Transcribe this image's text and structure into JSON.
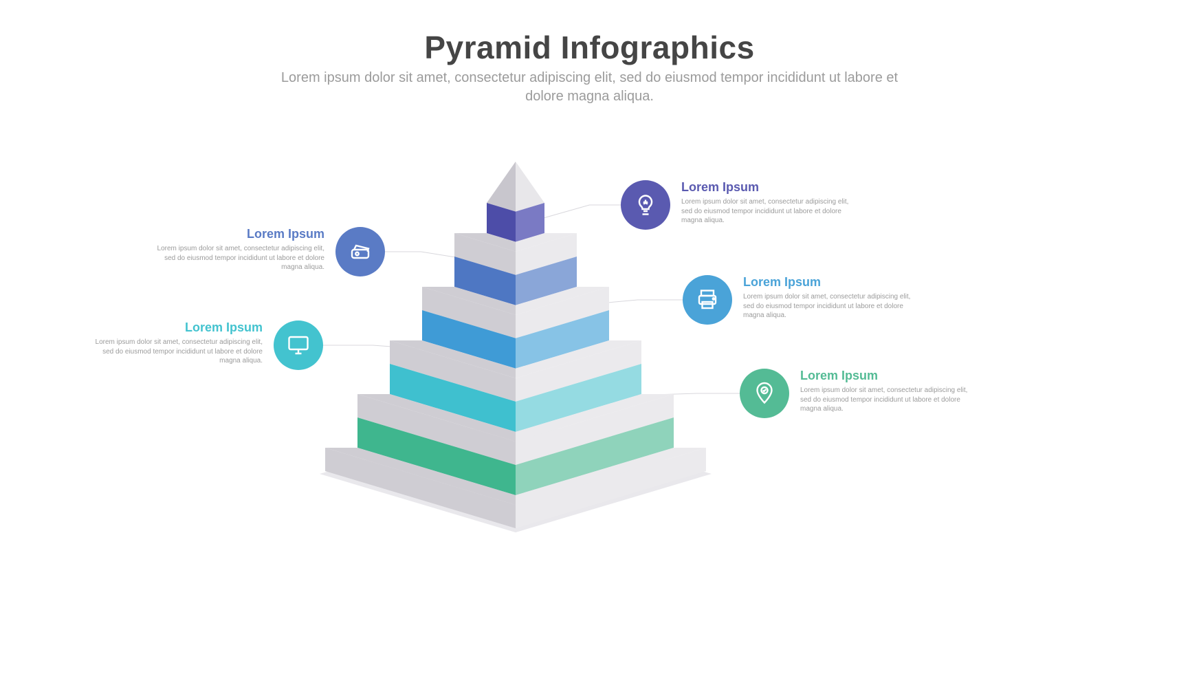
{
  "header": {
    "title": "Pyramid Infographics",
    "subtitle": "Lorem ipsum dolor sit amet, consectetur adipiscing elit, sed do eiusmod tempor incididunt ut labore et dolore magna aliqua.",
    "title_color": "#454545",
    "subtitle_color": "#9b9b9b",
    "title_fontsize": 46,
    "subtitle_fontsize": 20
  },
  "background_color": "#ffffff",
  "pyramid": {
    "type": "infographic",
    "apex": {
      "left_face": "#c8c6cd",
      "right_face": "#e8e7ea"
    },
    "spacer_color_left": "#cfcdd3",
    "spacer_color_right": "#ebeaed",
    "spacer_height": 34,
    "band_height": 44,
    "levels": [
      {
        "left_face": "#4d4da8",
        "right_face": "#7a7ac4"
      },
      {
        "left_face": "#4e77c3",
        "right_face": "#8aa6d8"
      },
      {
        "left_face": "#3f9bd6",
        "right_face": "#87c3e6"
      },
      {
        "left_face": "#3fc0cf",
        "right_face": "#95dbe2"
      },
      {
        "left_face": "#3fb68e",
        "right_face": "#8fd3bb"
      }
    ],
    "shadow_color": "#e9e8ec"
  },
  "callouts": [
    {
      "id": "c-bulb",
      "side": "right",
      "icon": "bulb-icon",
      "circle_color": "#5a5ab0",
      "title_color": "#5a5ab0",
      "title": "Lorem Ipsum",
      "desc": "Lorem ipsum dolor sit amet, consectetur adipiscing elit, sed do eiusmod tempor incididunt ut labore et dolore magna aliqua."
    },
    {
      "id": "c-tickets",
      "side": "left",
      "icon": "tickets-icon",
      "circle_color": "#5a7bc5",
      "title_color": "#5a7bc5",
      "title": "Lorem Ipsum",
      "desc": "Lorem ipsum dolor sit amet, consectetur adipiscing elit, sed do eiusmod tempor incididunt ut labore et dolore magna aliqua."
    },
    {
      "id": "c-printer",
      "side": "right",
      "icon": "printer-icon",
      "circle_color": "#4aa3d8",
      "title_color": "#4aa3d8",
      "title": "Lorem Ipsum",
      "desc": "Lorem ipsum dolor sit amet, consectetur adipiscing elit, sed do eiusmod tempor incididunt ut labore et dolore magna aliqua."
    },
    {
      "id": "c-monitor",
      "side": "left",
      "icon": "monitor-icon",
      "circle_color": "#43c3cf",
      "title_color": "#43c3cf",
      "title": "Lorem Ipsum",
      "desc": "Lorem ipsum dolor sit amet, consectetur adipiscing elit, sed do eiusmod tempor incididunt ut labore et dolore magna aliqua."
    },
    {
      "id": "c-pin",
      "side": "right",
      "icon": "pin-icon",
      "circle_color": "#54bb95",
      "title_color": "#54bb95",
      "title": "Lorem Ipsum",
      "desc": "Lorem ipsum dolor sit amet, consectetur adipiscing elit, sed do eiusmod tempor incididunt ut labore et dolore magna aliqua."
    }
  ],
  "connector_color": "#d8d7dc",
  "callout_desc_color": "#9b9b9b"
}
